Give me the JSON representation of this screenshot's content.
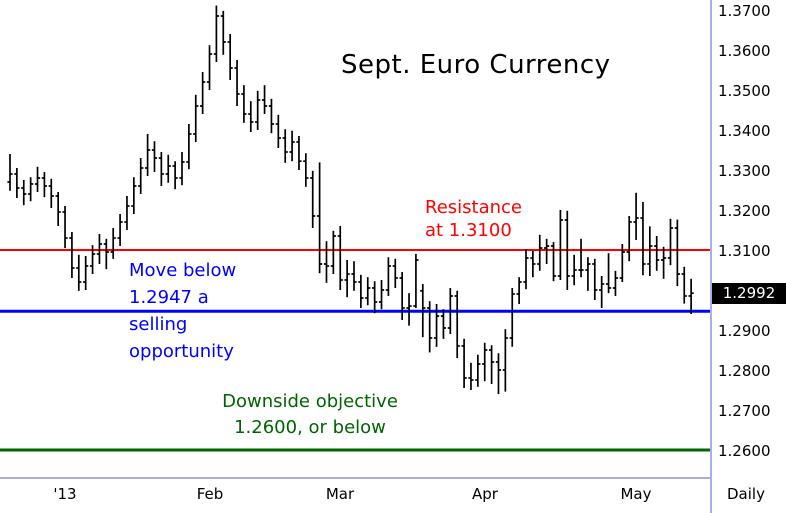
{
  "chart_data": {
    "type": "ohlc",
    "title": "Sept. Euro Currency",
    "period_label": "Daily",
    "last_close": 1.2992,
    "last_close_badge": "1.2992",
    "bar_color": "#000000",
    "frame_color": "#a7aee8",
    "y_axis": {
      "min": 1.253,
      "max": 1.3725,
      "tick_interval": 0.01,
      "tick_labels": [
        "1.3700",
        "1.3600",
        "1.3500",
        "1.3400",
        "1.3300",
        "1.3200",
        "1.3100",
        "1.2900",
        "1.2800",
        "1.2700",
        "1.2600"
      ]
    },
    "x_axis": {
      "labels": [
        {
          "text": "'13",
          "bar_index": 8
        },
        {
          "text": "Feb",
          "bar_index": 29
        },
        {
          "text": "Mar",
          "bar_index": 48
        },
        {
          "text": "Apr",
          "bar_index": 69
        },
        {
          "text": "May",
          "bar_index": 91
        }
      ]
    },
    "hlines": [
      {
        "price": 1.31,
        "color": "#ff0000",
        "stroke_width": 2,
        "label": "Resistance at 1.3100"
      },
      {
        "price": 1.2947,
        "color": "#0000ff",
        "stroke_width": 3,
        "label": "Move below 1.2947 a selling opportunity"
      },
      {
        "price": 1.26,
        "color": "#006400",
        "stroke_width": 3,
        "label": "Downside objective 1.2600, or below"
      }
    ],
    "annotations": {
      "resistance": {
        "lines": [
          "Resistance",
          "at 1.3100"
        ],
        "color": "#ff0000"
      },
      "support": {
        "lines": [
          "Move below",
          "1.2947 a",
          "selling",
          "opportunity"
        ],
        "color": "#0000ff"
      },
      "objective": {
        "lines": [
          "Downside objective",
          "1.2600, or below"
        ],
        "color": "#006400"
      }
    },
    "bars": [
      [
        1.327,
        1.334,
        1.3248,
        1.329
      ],
      [
        1.329,
        1.3305,
        1.323,
        1.3255
      ],
      [
        1.3255,
        1.3275,
        1.3212,
        1.324
      ],
      [
        1.324,
        1.3282,
        1.3222,
        1.3265
      ],
      [
        1.3265,
        1.3308,
        1.3245,
        1.328
      ],
      [
        1.328,
        1.3295,
        1.3232,
        1.326
      ],
      [
        1.326,
        1.3278,
        1.3205,
        1.3235
      ],
      [
        1.3235,
        1.3245,
        1.316,
        1.3195
      ],
      [
        1.3195,
        1.321,
        1.3105,
        1.313
      ],
      [
        1.313,
        1.3145,
        1.303,
        1.3055
      ],
      [
        1.3055,
        1.3088,
        1.2998,
        1.302
      ],
      [
        1.302,
        1.3085,
        1.3,
        1.306
      ],
      [
        1.306,
        1.3112,
        1.304,
        1.309
      ],
      [
        1.309,
        1.314,
        1.3065,
        1.3115
      ],
      [
        1.3115,
        1.3128,
        1.3052,
        1.3095
      ],
      [
        1.3095,
        1.3155,
        1.3078,
        1.313
      ],
      [
        1.313,
        1.319,
        1.311,
        1.317
      ],
      [
        1.317,
        1.3235,
        1.315,
        1.321
      ],
      [
        1.321,
        1.3282,
        1.319,
        1.326
      ],
      [
        1.326,
        1.333,
        1.324,
        1.3305
      ],
      [
        1.3305,
        1.339,
        1.3285,
        1.335
      ],
      [
        1.335,
        1.3372,
        1.3295,
        1.333
      ],
      [
        1.333,
        1.3345,
        1.326,
        1.329
      ],
      [
        1.329,
        1.3338,
        1.3268,
        1.331
      ],
      [
        1.331,
        1.3322,
        1.3252,
        1.328
      ],
      [
        1.328,
        1.3345,
        1.3262,
        1.332
      ],
      [
        1.332,
        1.3415,
        1.3302,
        1.339
      ],
      [
        1.339,
        1.3488,
        1.337,
        1.346
      ],
      [
        1.346,
        1.3545,
        1.344,
        1.352
      ],
      [
        1.352,
        1.3612,
        1.35,
        1.359
      ],
      [
        1.359,
        1.3711,
        1.357,
        1.3685
      ],
      [
        1.3685,
        1.3698,
        1.3588,
        1.362
      ],
      [
        1.362,
        1.364,
        1.3525,
        1.3555
      ],
      [
        1.3555,
        1.3575,
        1.346,
        1.349
      ],
      [
        1.349,
        1.3512,
        1.3418,
        1.344
      ],
      [
        1.344,
        1.3472,
        1.3395,
        1.342
      ],
      [
        1.342,
        1.3498,
        1.34,
        1.3475
      ],
      [
        1.3475,
        1.3512,
        1.344,
        1.346
      ],
      [
        1.346,
        1.3478,
        1.3392,
        1.3415
      ],
      [
        1.3415,
        1.3438,
        1.3355,
        1.338
      ],
      [
        1.338,
        1.3402,
        1.3318,
        1.3345
      ],
      [
        1.3345,
        1.3398,
        1.3322,
        1.337
      ],
      [
        1.337,
        1.3385,
        1.33,
        1.3322
      ],
      [
        1.3322,
        1.3342,
        1.3258,
        1.328
      ],
      [
        1.328,
        1.3298,
        1.3155,
        1.3185
      ],
      [
        1.3185,
        1.3319,
        1.3042,
        1.3065
      ],
      [
        1.3065,
        1.3122,
        1.3018,
        1.306
      ],
      [
        1.306,
        1.3148,
        1.304,
        1.3135
      ],
      [
        1.3135,
        1.316,
        1.3,
        1.3025
      ],
      [
        1.3025,
        1.3075,
        1.2982,
        1.304
      ],
      [
        1.304,
        1.3072,
        1.2998,
        1.302
      ],
      [
        1.302,
        1.3038,
        1.2955,
        1.298
      ],
      [
        1.298,
        1.3032,
        1.2962,
        1.3005
      ],
      [
        1.3005,
        1.3022,
        1.2942,
        1.297
      ],
      [
        1.297,
        1.3025,
        1.2952,
        1.3
      ],
      [
        1.3,
        1.3082,
        1.2985,
        1.306
      ],
      [
        1.306,
        1.3078,
        1.3005,
        1.303
      ],
      [
        1.303,
        1.3045,
        1.2925,
        1.2955
      ],
      [
        1.2955,
        1.2992,
        1.2911,
        1.296
      ],
      [
        1.296,
        1.309,
        1.2955,
        1.3075
      ],
      [
        1.2998,
        1.3015,
        1.2882,
        1.2955
      ],
      [
        1.2955,
        1.2972,
        1.2844,
        1.288
      ],
      [
        1.288,
        1.2965,
        1.2858,
        1.2935
      ],
      [
        1.2935,
        1.2952,
        1.2878,
        1.2905
      ],
      [
        1.2905,
        1.3005,
        1.289,
        1.2985
      ],
      [
        1.2985,
        1.2998,
        1.283,
        1.286
      ],
      [
        1.286,
        1.2878,
        1.2755,
        1.278
      ],
      [
        1.278,
        1.2818,
        1.275,
        1.2775
      ],
      [
        1.2775,
        1.2838,
        1.2758,
        1.2815
      ],
      [
        1.2815,
        1.2868,
        1.2772,
        1.285
      ],
      [
        1.285,
        1.2862,
        1.2765,
        1.282
      ],
      [
        1.282,
        1.2842,
        1.274,
        1.28
      ],
      [
        1.28,
        1.2902,
        1.2746,
        1.288
      ],
      [
        1.288,
        1.3005,
        1.2858,
        1.299
      ],
      [
        1.299,
        1.3032,
        1.2965,
        1.302
      ],
      [
        1.302,
        1.3102,
        1.3002,
        1.308
      ],
      [
        1.308,
        1.3098,
        1.3032,
        1.3065
      ],
      [
        1.3065,
        1.3138,
        1.3048,
        1.3105
      ],
      [
        1.3105,
        1.3128,
        1.3065,
        1.311
      ],
      [
        1.311,
        1.312,
        1.3022,
        1.3035
      ],
      [
        1.3035,
        1.32,
        1.3025,
        1.3175
      ],
      [
        1.3175,
        1.3198,
        1.3,
        1.3035
      ],
      [
        1.3035,
        1.3088,
        1.3012,
        1.305
      ],
      [
        1.305,
        1.3128,
        1.3032,
        1.305
      ],
      [
        1.305,
        1.3082,
        1.2998,
        1.3065
      ],
      [
        1.3065,
        1.3078,
        1.2975,
        1.3
      ],
      [
        1.3,
        1.3035,
        1.2955,
        1.3015
      ],
      [
        1.3015,
        1.3092,
        1.2992,
        1.3005
      ],
      [
        1.3005,
        1.3048,
        1.2985,
        1.303
      ],
      [
        1.303,
        1.3115,
        1.302,
        1.3095
      ],
      [
        1.3095,
        1.3185,
        1.3072,
        1.317
      ],
      [
        1.317,
        1.3243,
        1.3125,
        1.318
      ],
      [
        1.318,
        1.322,
        1.3037,
        1.3065
      ],
      [
        1.3065,
        1.3159,
        1.3035,
        1.311
      ],
      [
        1.311,
        1.3135,
        1.3048,
        1.3075
      ],
      [
        1.3075,
        1.3108,
        1.3028,
        1.308
      ],
      [
        1.308,
        1.3178,
        1.3062,
        1.3155
      ],
      [
        1.3155,
        1.3176,
        1.301,
        1.304
      ],
      [
        1.304,
        1.3058,
        1.2966,
        1.2985
      ],
      [
        1.2985,
        1.3028,
        1.294,
        1.2992
      ]
    ]
  }
}
